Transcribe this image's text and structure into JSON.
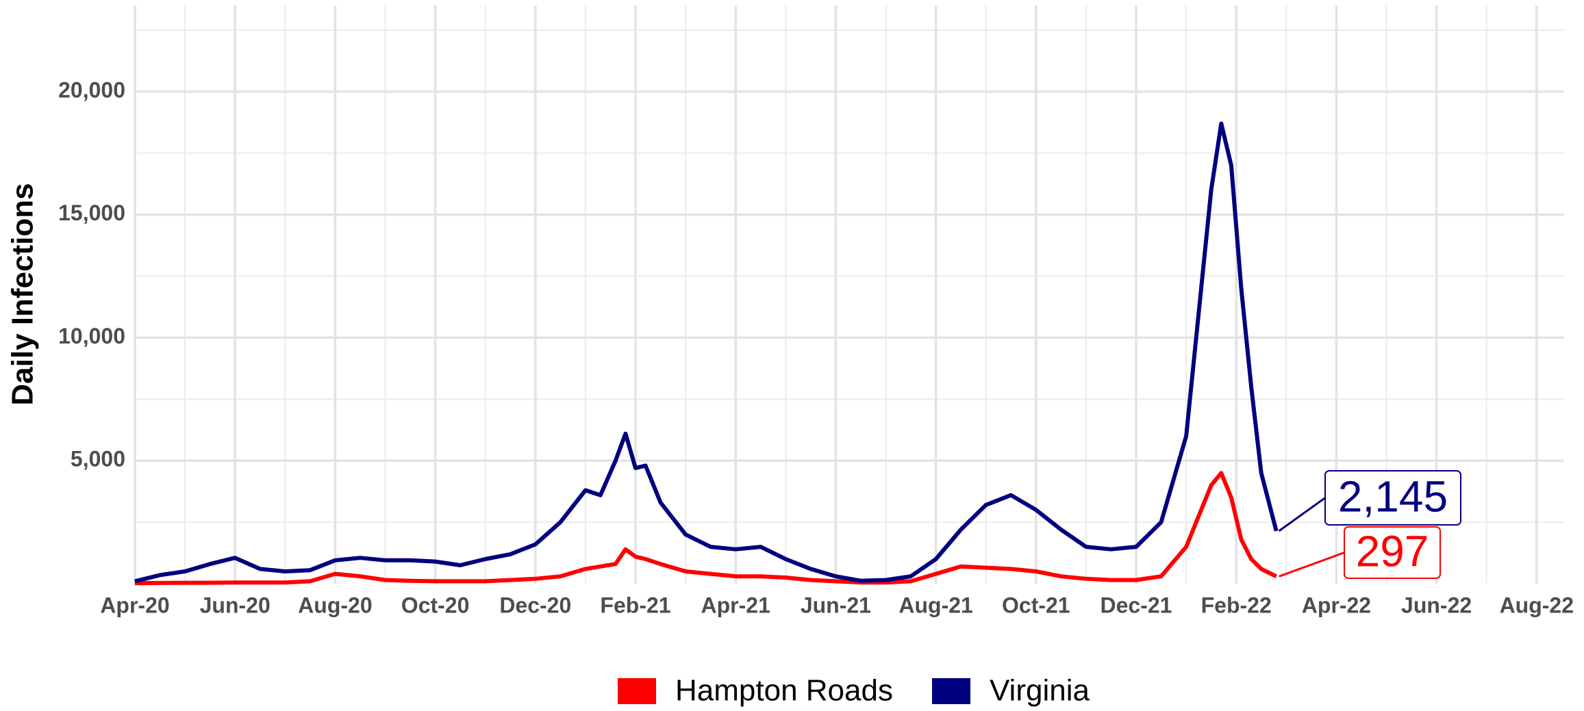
{
  "chart_data": {
    "type": "line",
    "y_label": "Daily Infections",
    "x": [
      0,
      0.5,
      1,
      1.5,
      2,
      2.5,
      3,
      3.5,
      4,
      4.5,
      5,
      5.5,
      6,
      6.5,
      7,
      7.5,
      8,
      8.5,
      9,
      9.3,
      9.6,
      9.8,
      10,
      10.2,
      10.5,
      11,
      11.5,
      12,
      12.5,
      13,
      13.5,
      14,
      14.5,
      15,
      15.5,
      16,
      16.5,
      17,
      17.5,
      18,
      18.5,
      19,
      19.5,
      20,
      20.5,
      21,
      21.3,
      21.5,
      21.7,
      21.9,
      22.1,
      22.3,
      22.5,
      22.8
    ],
    "series": [
      {
        "name": "Hampton Roads",
        "color": "#ff0000",
        "end_label": "297",
        "values": [
          20,
          30,
          40,
          40,
          50,
          50,
          50,
          100,
          400,
          300,
          150,
          120,
          100,
          100,
          100,
          150,
          200,
          300,
          600,
          700,
          800,
          1400,
          1100,
          1000,
          800,
          500,
          400,
          300,
          300,
          250,
          150,
          100,
          50,
          50,
          100,
          400,
          700,
          650,
          600,
          500,
          300,
          200,
          150,
          150,
          300,
          1500,
          3000,
          4000,
          4500,
          3500,
          1800,
          1000,
          600,
          297
        ]
      },
      {
        "name": "Virginia",
        "color": "#000080",
        "end_label": "2,145",
        "values": [
          100,
          350,
          500,
          800,
          1050,
          600,
          500,
          550,
          950,
          1050,
          950,
          950,
          900,
          750,
          1000,
          1200,
          1600,
          2500,
          3800,
          3600,
          5000,
          6100,
          4700,
          4800,
          3300,
          2000,
          1500,
          1400,
          1500,
          1000,
          600,
          300,
          120,
          150,
          300,
          1000,
          2200,
          3200,
          3600,
          3000,
          2200,
          1500,
          1400,
          1500,
          2500,
          6000,
          12000,
          16000,
          18700,
          17000,
          12000,
          8000,
          4500,
          2145
        ]
      }
    ],
    "xlim": [
      0,
      28.55
    ],
    "xticks": [
      {
        "value": 0,
        "label": "Apr-20"
      },
      {
        "value": 2,
        "label": "Jun-20"
      },
      {
        "value": 4,
        "label": "Aug-20"
      },
      {
        "value": 6,
        "label": "Oct-20"
      },
      {
        "value": 8,
        "label": "Dec-20"
      },
      {
        "value": 10,
        "label": "Feb-21"
      },
      {
        "value": 12,
        "label": "Apr-21"
      },
      {
        "value": 14,
        "label": "Jun-21"
      },
      {
        "value": 16,
        "label": "Aug-21"
      },
      {
        "value": 18,
        "label": "Oct-21"
      },
      {
        "value": 20,
        "label": "Dec-21"
      },
      {
        "value": 22,
        "label": "Feb-22"
      },
      {
        "value": 24,
        "label": "Apr-22"
      },
      {
        "value": 26,
        "label": "Jun-22"
      },
      {
        "value": 28,
        "label": "Aug-22"
      }
    ],
    "ylim": [
      0,
      23500
    ],
    "yticks": [
      {
        "value": 5000,
        "label": "5,000"
      },
      {
        "value": 10000,
        "label": "10,000"
      },
      {
        "value": 15000,
        "label": "15,000"
      },
      {
        "value": 20000,
        "label": "20,000"
      }
    ],
    "grid": true,
    "legend": "bottom"
  }
}
